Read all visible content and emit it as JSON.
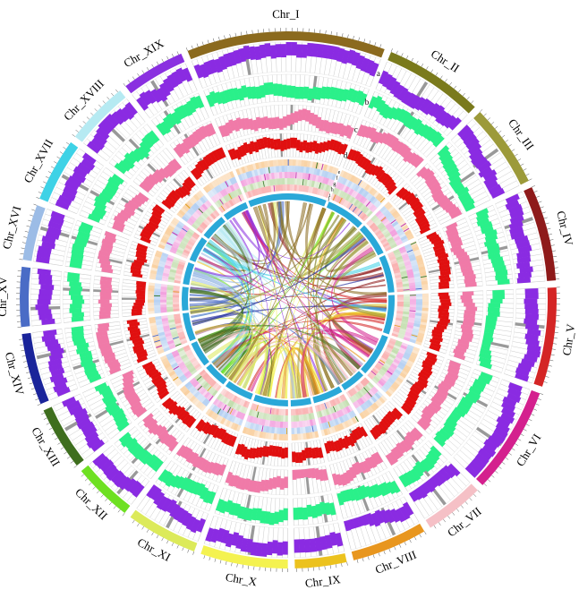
{
  "chromosomes": [
    {
      "name": "Chr_I",
      "color": "#8b6a1e"
    },
    {
      "name": "Chr_II",
      "color": "#7a7a1c"
    },
    {
      "name": "Chr_III",
      "color": "#9c9a3a"
    },
    {
      "name": "Chr_IV",
      "color": "#8e1a1a"
    },
    {
      "name": "Chr_V",
      "color": "#d42525"
    },
    {
      "name": "Chr_VI",
      "color": "#d4208e"
    },
    {
      "name": "Chr_VII",
      "color": "#f5c0c6"
    },
    {
      "name": "Chr_VIII",
      "color": "#e8961e"
    },
    {
      "name": "Chr_IX",
      "color": "#ecc21e"
    },
    {
      "name": "Chr_X",
      "color": "#f4f250"
    },
    {
      "name": "Chr_XI",
      "color": "#dcea5a"
    },
    {
      "name": "Chr_XII",
      "color": "#6ee022"
    },
    {
      "name": "Chr_XIII",
      "color": "#3e6e1e"
    },
    {
      "name": "Chr_XIV",
      "color": "#1a249a"
    },
    {
      "name": "Chr_XV",
      "color": "#4a6cc6"
    },
    {
      "name": "Chr_XVI",
      "color": "#9cbce6"
    },
    {
      "name": "Chr_XVII",
      "color": "#3ed2e6"
    },
    {
      "name": "Chr_XVIII",
      "color": "#b6eaf2"
    },
    {
      "name": "Chr_XIX",
      "color": "#8a30e0"
    }
  ],
  "tracks": [
    {
      "label": "a",
      "type": "histogram",
      "color": "#8a2be2"
    },
    {
      "label": "b",
      "type": "histogram",
      "color": "#2af08a"
    },
    {
      "label": "c",
      "type": "histogram",
      "color": "#f07aa8"
    },
    {
      "label": "d",
      "type": "histogram",
      "color": "#e01010"
    },
    {
      "label": "e",
      "type": "heatmap",
      "color": "#f8c890"
    },
    {
      "label": "f",
      "type": "heatmap",
      "color": "#a8c8f0"
    },
    {
      "label": "g",
      "type": "heatmap",
      "color": "#f090d8"
    },
    {
      "label": "h",
      "type": "heatmap",
      "color": "#b8d8a0"
    },
    {
      "label": "i",
      "type": "heatmap",
      "color": "#f8a0a0"
    },
    {
      "label": "j",
      "type": "ring",
      "color": "#2aa8d8"
    }
  ],
  "histogram_gap_color": "#999999"
}
